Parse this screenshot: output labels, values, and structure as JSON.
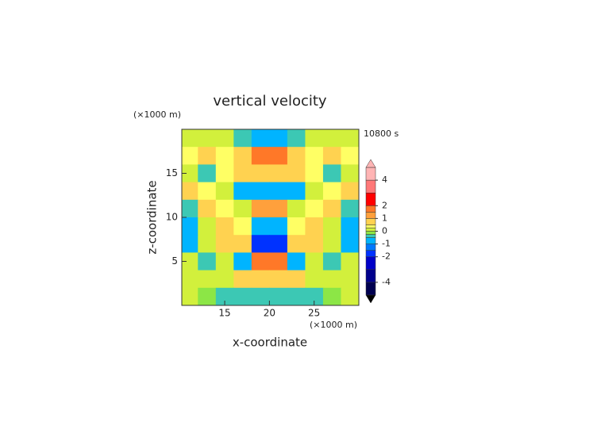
{
  "chart_data": {
    "type": "contour",
    "title": "vertical velocity",
    "x_label": "x-coordinate",
    "y_label": "z-coordinate",
    "x_unit": "(×1000 m)",
    "y_unit": "(×1000 m)",
    "time_label": "10800 s",
    "xlim": [
      10.2,
      30
    ],
    "ylim": [
      0,
      20
    ],
    "xticks": [
      15,
      20,
      25
    ],
    "yticks": [
      5,
      10,
      15
    ],
    "x": [
      11,
      13,
      15,
      17,
      19,
      21,
      23,
      25,
      27,
      29
    ],
    "y": [
      19,
      17,
      15,
      13,
      11,
      9,
      7,
      5,
      3,
      1
    ],
    "z": [
      [
        0.2,
        0,
        0.2,
        -0.5,
        -1,
        -1,
        -0.5,
        0.2,
        0,
        0.2
      ],
      [
        0.3,
        0.6,
        0.3,
        0.8,
        1.6,
        1.6,
        0.8,
        0.3,
        0.6,
        0.3
      ],
      [
        0,
        -0.3,
        0.3,
        0.6,
        0.6,
        0.6,
        0.6,
        0.3,
        -0.3,
        0
      ],
      [
        0.8,
        0.3,
        0,
        -0.8,
        -1,
        -1,
        -0.8,
        0,
        0.3,
        0.8
      ],
      [
        -0.3,
        0.6,
        0.3,
        0,
        1,
        1,
        0,
        0.3,
        0.6,
        -0.3
      ],
      [
        -0.8,
        0,
        0.6,
        0.3,
        -0.8,
        -0.8,
        0.3,
        0.6,
        0,
        -0.8
      ],
      [
        -0.6,
        0.2,
        0.6,
        0.8,
        -1.6,
        -1.6,
        0.8,
        0.6,
        0.2,
        -0.6
      ],
      [
        0,
        -0.3,
        0.2,
        -0.6,
        1.6,
        1.6,
        -0.6,
        0.2,
        -0.3,
        0
      ],
      [
        0.2,
        0.2,
        0,
        0.6,
        0.6,
        0.6,
        0.6,
        0,
        0.2,
        0.2
      ],
      [
        0.2,
        -0.2,
        -0.3,
        -0.3,
        -0.3,
        -0.3,
        -0.3,
        -0.3,
        -0.2,
        0.2
      ]
    ],
    "levels": [
      -5,
      -4,
      -3,
      -2,
      -1.5,
      -1,
      -0.5,
      -0.25,
      0,
      0.25,
      0.5,
      1,
      1.5,
      2,
      3,
      4,
      5
    ],
    "colors": [
      "#000050",
      "#00008c",
      "#0000c8",
      "#0032ff",
      "#0078ff",
      "#00b4ff",
      "#3cc8b4",
      "#8ce646",
      "#d2f03c",
      "#ffff64",
      "#ffd250",
      "#ffa03c",
      "#ff7828",
      "#ff0000",
      "#ff7878",
      "#ffb4b4"
    ],
    "under_color": "#000000",
    "over_color": "#ffb4b4",
    "cbar_lim": [
      -5,
      5
    ],
    "cbar_ticks": [
      -4,
      -2,
      -1,
      0,
      1,
      2,
      4
    ]
  }
}
